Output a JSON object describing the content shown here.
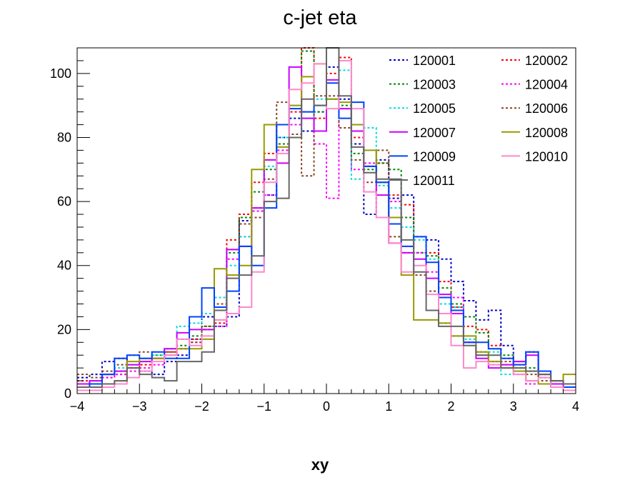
{
  "chart_data": {
    "type": "histogram",
    "title": "c-jet eta",
    "xlabel": "xy",
    "ylabel": "",
    "xlim": [
      -4,
      4
    ],
    "ylim": [
      0,
      108
    ],
    "bin_edges": [
      -4.0,
      -3.8,
      -3.6,
      -3.4,
      -3.2,
      -3.0,
      -2.8,
      -2.6,
      -2.4,
      -2.2,
      -2.0,
      -1.8,
      -1.6,
      -1.4,
      -1.2,
      -1.0,
      -0.8,
      -0.6,
      -0.4,
      -0.2,
      0.0,
      0.2,
      0.4,
      0.6,
      0.8,
      1.0,
      1.2,
      1.4,
      1.6,
      1.8,
      2.0,
      2.2,
      2.4,
      2.6,
      2.8,
      3.0,
      3.2,
      3.4,
      3.6,
      3.8,
      4.0
    ],
    "x_ticks": [
      "−4",
      "−3",
      "−2",
      "−1",
      "0",
      "1",
      "2",
      "3",
      "4"
    ],
    "y_ticks": [
      "0",
      "20",
      "40",
      "60",
      "80",
      "100"
    ],
    "legend_position": "top-right",
    "series": [
      {
        "name": "120001",
        "color": "#0000cc",
        "dash": "3,3",
        "values": [
          5,
          6,
          10,
          11,
          8,
          7,
          6,
          10,
          12,
          17,
          24,
          21,
          24,
          54,
          58,
          62,
          80,
          86,
          82,
          88,
          102,
          92,
          78,
          56,
          73,
          61,
          62,
          49,
          48,
          42,
          35,
          29,
          23,
          26,
          15,
          10,
          13,
          6,
          4,
          3
        ]
      },
      {
        "name": "120002",
        "color": "#ff0000",
        "dash": "3,3",
        "values": [
          4,
          3,
          5,
          6,
          8,
          9,
          11,
          13,
          14,
          17,
          20,
          22,
          48,
          56,
          66,
          75,
          84,
          88,
          108,
          86,
          100,
          105,
          80,
          71,
          72,
          62,
          59,
          44,
          44,
          35,
          27,
          21,
          20,
          15,
          11,
          9,
          7,
          5,
          4,
          3
        ]
      },
      {
        "name": "120003",
        "color": "#008800",
        "dash": "3,3",
        "values": [
          3,
          4,
          6,
          7,
          9,
          10,
          12,
          14,
          15,
          18,
          21,
          23,
          44,
          55,
          63,
          70,
          78,
          89,
          107,
          88,
          92,
          90,
          75,
          70,
          72,
          70,
          55,
          44,
          43,
          33,
          28,
          24,
          19,
          14,
          12,
          10,
          8,
          6,
          4,
          3
        ]
      },
      {
        "name": "120004",
        "color": "#ff00ff",
        "dash": "3,3",
        "values": [
          2,
          3,
          5,
          6,
          7,
          8,
          9,
          12,
          14,
          16,
          20,
          21,
          42,
          49,
          57,
          62,
          76,
          84,
          88,
          78,
          61,
          89,
          70,
          72,
          66,
          60,
          46,
          44,
          38,
          30,
          30,
          16,
          12,
          9,
          9,
          6,
          3,
          3,
          2,
          2
        ]
      },
      {
        "name": "120005",
        "color": "#00dddd",
        "dash": "3,3",
        "values": [
          2,
          4,
          6,
          8,
          9,
          10,
          12,
          14,
          21,
          22,
          25,
          30,
          40,
          49,
          55,
          71,
          80,
          90,
          86,
          92,
          92,
          101,
          67,
          83,
          65,
          58,
          52,
          48,
          42,
          28,
          27,
          17,
          12,
          13,
          6,
          8,
          7,
          5,
          3,
          2
        ]
      },
      {
        "name": "120006",
        "color": "#884422",
        "dash": "3,3",
        "values": [
          6,
          5,
          7,
          9,
          12,
          13,
          11,
          13,
          17,
          16,
          21,
          28,
          45,
          53,
          55,
          67,
          91,
          81,
          68,
          93,
          93,
          83,
          73,
          66,
          76,
          49,
          44,
          37,
          32,
          22,
          18,
          16,
          13,
          10,
          10,
          8,
          6,
          4,
          3,
          2
        ]
      },
      {
        "name": "120007",
        "color": "#cc00ff",
        "dash": "",
        "values": [
          3,
          4,
          6,
          7,
          9,
          10,
          11,
          14,
          19,
          20,
          20,
          26,
          45,
          46,
          58,
          73,
          72,
          102,
          86,
          82,
          98,
          89,
          82,
          71,
          62,
          47,
          44,
          42,
          36,
          31,
          25,
          16,
          11,
          8,
          9,
          10,
          12,
          6,
          3,
          2
        ]
      },
      {
        "name": "120008",
        "color": "#999900",
        "dash": "",
        "values": [
          2,
          2,
          3,
          4,
          10,
          11,
          11,
          12,
          14,
          14,
          17,
          39,
          37,
          40,
          70,
          84,
          77,
          90,
          99,
          103,
          92,
          91,
          84,
          76,
          66,
          55,
          37,
          23,
          23,
          22,
          18,
          18,
          13,
          10,
          8,
          7,
          4,
          3,
          4,
          6
        ]
      },
      {
        "name": "120009",
        "color": "#0044ff",
        "dash": "",
        "values": [
          2,
          3,
          6,
          11,
          12,
          11,
          13,
          11,
          11,
          24,
          33,
          27,
          32,
          46,
          40,
          58,
          84,
          89,
          88,
          90,
          97,
          86,
          91,
          71,
          66,
          53,
          46,
          49,
          41,
          30,
          26,
          16,
          16,
          14,
          11,
          9,
          13,
          7,
          2,
          2
        ]
      },
      {
        "name": "120010",
        "color": "#ff88cc",
        "dash": "",
        "values": [
          1,
          1,
          2,
          3,
          5,
          7,
          10,
          12,
          17,
          15,
          18,
          23,
          25,
          27,
          38,
          66,
          75,
          95,
          97,
          103,
          89,
          104,
          89,
          63,
          55,
          47,
          38,
          40,
          31,
          25,
          15,
          8,
          10,
          9,
          8,
          6,
          4,
          5,
          2,
          1
        ]
      },
      {
        "name": "120011",
        "color": "#666666",
        "dash": "",
        "values": [
          2,
          2,
          3,
          4,
          8,
          6,
          5,
          4,
          10,
          10,
          13,
          26,
          36,
          37,
          43,
          60,
          61,
          80,
          92,
          90,
          108,
          93,
          77,
          69,
          67,
          67,
          48,
          38,
          26,
          21,
          21,
          15,
          12,
          12,
          8,
          8,
          7,
          6,
          4,
          3
        ]
      }
    ]
  }
}
